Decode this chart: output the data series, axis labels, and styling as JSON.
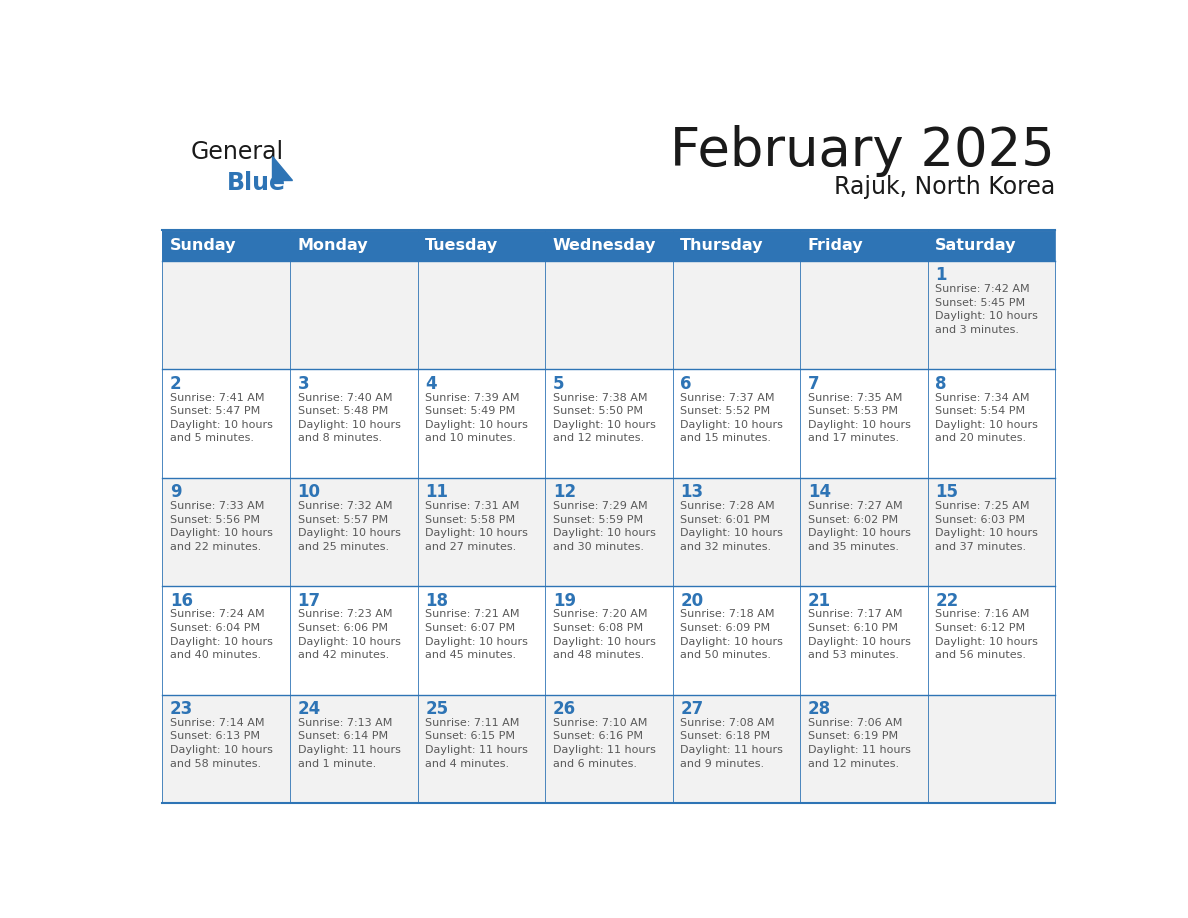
{
  "title": "February 2025",
  "subtitle": "Rajuk, North Korea",
  "days_of_week": [
    "Sunday",
    "Monday",
    "Tuesday",
    "Wednesday",
    "Thursday",
    "Friday",
    "Saturday"
  ],
  "header_bg_color": "#2E74B5",
  "header_text_color": "#FFFFFF",
  "cell_bg_white": "#FFFFFF",
  "cell_bg_gray": "#F2F2F2",
  "border_color": "#2E74B5",
  "day_number_color": "#2E74B5",
  "text_color": "#595959",
  "title_color": "#1A1A1A",
  "logo_general_color": "#1A1A1A",
  "logo_blue_color": "#2E74B5",
  "row_bg_colors": [
    "#F2F2F2",
    "#FFFFFF",
    "#F2F2F2",
    "#FFFFFF",
    "#F2F2F2"
  ],
  "calendar_data": [
    [
      null,
      null,
      null,
      null,
      null,
      null,
      {
        "day": 1,
        "sunrise": "7:42 AM",
        "sunset": "5:45 PM",
        "daylight": "10 hours\nand 3 minutes."
      }
    ],
    [
      {
        "day": 2,
        "sunrise": "7:41 AM",
        "sunset": "5:47 PM",
        "daylight": "10 hours\nand 5 minutes."
      },
      {
        "day": 3,
        "sunrise": "7:40 AM",
        "sunset": "5:48 PM",
        "daylight": "10 hours\nand 8 minutes."
      },
      {
        "day": 4,
        "sunrise": "7:39 AM",
        "sunset": "5:49 PM",
        "daylight": "10 hours\nand 10 minutes."
      },
      {
        "day": 5,
        "sunrise": "7:38 AM",
        "sunset": "5:50 PM",
        "daylight": "10 hours\nand 12 minutes."
      },
      {
        "day": 6,
        "sunrise": "7:37 AM",
        "sunset": "5:52 PM",
        "daylight": "10 hours\nand 15 minutes."
      },
      {
        "day": 7,
        "sunrise": "7:35 AM",
        "sunset": "5:53 PM",
        "daylight": "10 hours\nand 17 minutes."
      },
      {
        "day": 8,
        "sunrise": "7:34 AM",
        "sunset": "5:54 PM",
        "daylight": "10 hours\nand 20 minutes."
      }
    ],
    [
      {
        "day": 9,
        "sunrise": "7:33 AM",
        "sunset": "5:56 PM",
        "daylight": "10 hours\nand 22 minutes."
      },
      {
        "day": 10,
        "sunrise": "7:32 AM",
        "sunset": "5:57 PM",
        "daylight": "10 hours\nand 25 minutes."
      },
      {
        "day": 11,
        "sunrise": "7:31 AM",
        "sunset": "5:58 PM",
        "daylight": "10 hours\nand 27 minutes."
      },
      {
        "day": 12,
        "sunrise": "7:29 AM",
        "sunset": "5:59 PM",
        "daylight": "10 hours\nand 30 minutes."
      },
      {
        "day": 13,
        "sunrise": "7:28 AM",
        "sunset": "6:01 PM",
        "daylight": "10 hours\nand 32 minutes."
      },
      {
        "day": 14,
        "sunrise": "7:27 AM",
        "sunset": "6:02 PM",
        "daylight": "10 hours\nand 35 minutes."
      },
      {
        "day": 15,
        "sunrise": "7:25 AM",
        "sunset": "6:03 PM",
        "daylight": "10 hours\nand 37 minutes."
      }
    ],
    [
      {
        "day": 16,
        "sunrise": "7:24 AM",
        "sunset": "6:04 PM",
        "daylight": "10 hours\nand 40 minutes."
      },
      {
        "day": 17,
        "sunrise": "7:23 AM",
        "sunset": "6:06 PM",
        "daylight": "10 hours\nand 42 minutes."
      },
      {
        "day": 18,
        "sunrise": "7:21 AM",
        "sunset": "6:07 PM",
        "daylight": "10 hours\nand 45 minutes."
      },
      {
        "day": 19,
        "sunrise": "7:20 AM",
        "sunset": "6:08 PM",
        "daylight": "10 hours\nand 48 minutes."
      },
      {
        "day": 20,
        "sunrise": "7:18 AM",
        "sunset": "6:09 PM",
        "daylight": "10 hours\nand 50 minutes."
      },
      {
        "day": 21,
        "sunrise": "7:17 AM",
        "sunset": "6:10 PM",
        "daylight": "10 hours\nand 53 minutes."
      },
      {
        "day": 22,
        "sunrise": "7:16 AM",
        "sunset": "6:12 PM",
        "daylight": "10 hours\nand 56 minutes."
      }
    ],
    [
      {
        "day": 23,
        "sunrise": "7:14 AM",
        "sunset": "6:13 PM",
        "daylight": "10 hours\nand 58 minutes."
      },
      {
        "day": 24,
        "sunrise": "7:13 AM",
        "sunset": "6:14 PM",
        "daylight": "11 hours\nand 1 minute."
      },
      {
        "day": 25,
        "sunrise": "7:11 AM",
        "sunset": "6:15 PM",
        "daylight": "11 hours\nand 4 minutes."
      },
      {
        "day": 26,
        "sunrise": "7:10 AM",
        "sunset": "6:16 PM",
        "daylight": "11 hours\nand 6 minutes."
      },
      {
        "day": 27,
        "sunrise": "7:08 AM",
        "sunset": "6:18 PM",
        "daylight": "11 hours\nand 9 minutes."
      },
      {
        "day": 28,
        "sunrise": "7:06 AM",
        "sunset": "6:19 PM",
        "daylight": "11 hours\nand 12 minutes."
      },
      null
    ]
  ]
}
